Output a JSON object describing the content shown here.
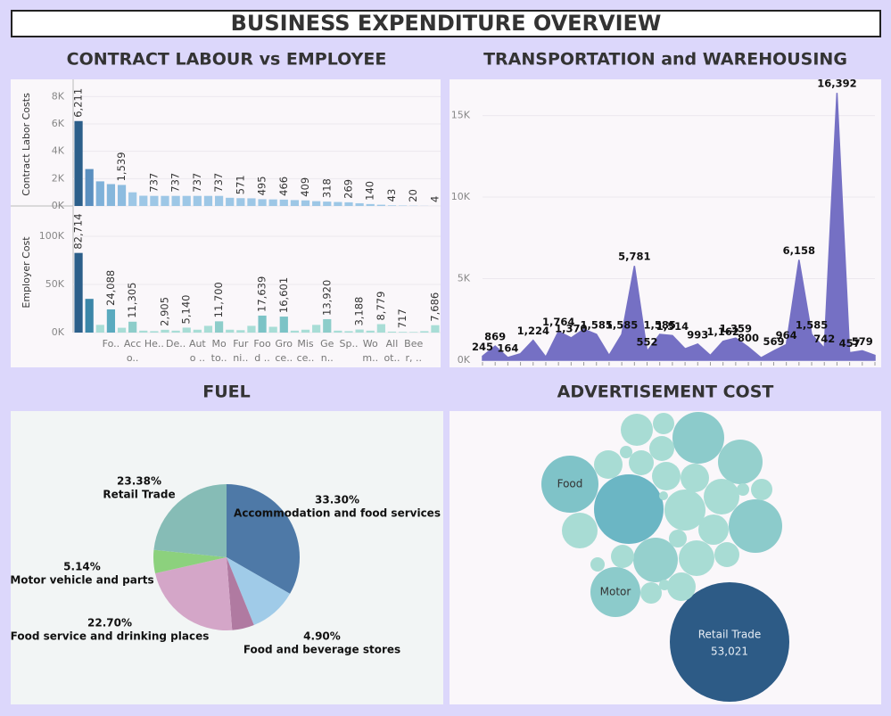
{
  "title": "BUSINESS EXPENDITURE OVERVIEW",
  "chart_data": [
    {
      "type": "bar",
      "title": "CONTRACT LABOUR vs EMPLOYEE",
      "y_label": "Contract Labor Costs",
      "values": [
        6211,
        2700,
        1800,
        1600,
        1539,
        1000,
        750,
        737,
        737,
        737,
        737,
        737,
        737,
        737,
        600,
        571,
        560,
        495,
        480,
        466,
        430,
        409,
        350,
        318,
        290,
        269,
        200,
        140,
        90,
        43,
        30,
        20,
        10,
        4
      ],
      "value_labels": [
        "6,211",
        null,
        null,
        null,
        "1,539",
        null,
        null,
        "737",
        null,
        "737",
        null,
        "737",
        null,
        "737",
        null,
        "571",
        null,
        "495",
        null,
        "466",
        null,
        "409",
        null,
        "318",
        null,
        "269",
        null,
        "140",
        null,
        "43",
        null,
        "20",
        null,
        "4"
      ],
      "colors": [
        "#2c5f8a",
        "#5a8fbf",
        "#7fb1d9",
        "#86b7dc",
        "#8dbce0",
        "#9dc7e6",
        "#9dc7e6",
        "#9dc7e6",
        "#9dc7e6",
        "#9dc7e6",
        "#9dc7e6",
        "#9dc7e6",
        "#9dc7e6",
        "#9dc7e6",
        "#9dc7e6",
        "#9dc7e6",
        "#9dc7e6",
        "#9dc7e6",
        "#9dc7e6",
        "#9dc7e6",
        "#9dc7e6",
        "#9dc7e6",
        "#9dc7e6",
        "#9dc7e6",
        "#9dc7e6",
        "#9dc7e6",
        "#9dc7e6",
        "#9dc7e6",
        "#9dc7e6",
        "#9dc7e6",
        "#9dc7e6",
        "#9dc7e6",
        "#9dc7e6",
        "#9dc7e6"
      ],
      "ylim": [
        0,
        9000
      ],
      "yticks": [
        {
          "value": 0,
          "label": "0K"
        },
        {
          "value": 2000,
          "label": "2K"
        },
        {
          "value": 4000,
          "label": "4K"
        },
        {
          "value": 6000,
          "label": "6K"
        },
        {
          "value": 8000,
          "label": "8K"
        }
      ],
      "grid": true
    },
    {
      "type": "bar",
      "y_label": "Employer Cost",
      "categories": [
        null,
        null,
        null,
        "Fo..",
        null,
        "Acc o..",
        null,
        "He..",
        null,
        "De..",
        null,
        "Aut o ..",
        null,
        "Mo to..",
        null,
        "Fur ni..",
        null,
        "Foo d ..",
        null,
        "Gro ce..",
        null,
        "Mis ce..",
        null,
        "Ge n..",
        null,
        "Sp..",
        null,
        "Wo m..",
        null,
        "All ot..",
        null,
        "Bee r, ..",
        null,
        null
      ],
      "values": [
        82714,
        35000,
        8000,
        24088,
        5000,
        11305,
        2000,
        1500,
        2905,
        2000,
        5140,
        3000,
        7000,
        11700,
        3000,
        2500,
        7000,
        17639,
        6000,
        16601,
        2000,
        3000,
        8000,
        13920,
        2000,
        1500,
        3188,
        2000,
        8779,
        1000,
        717,
        600,
        1500,
        7686
      ],
      "value_labels": [
        "82,714",
        null,
        null,
        "24,088",
        null,
        "11,305",
        null,
        null,
        "2,905",
        null,
        "5,140",
        null,
        null,
        "11,700",
        null,
        null,
        null,
        "17,639",
        null,
        "16,601",
        null,
        null,
        null,
        "13,920",
        null,
        null,
        "3,188",
        null,
        "8,779",
        null,
        "717",
        null,
        null,
        "7,686"
      ],
      "colors": [
        "#2c5f8a",
        "#3b86a8",
        "#a8ddd6",
        "#5aaabf",
        "#a8ddd6",
        "#8dcdca",
        "#a8ddd6",
        "#a8ddd6",
        "#a8ddd6",
        "#a8ddd6",
        "#a8ddd6",
        "#a8ddd6",
        "#a8ddd6",
        "#8dcdca",
        "#a8ddd6",
        "#a8ddd6",
        "#a8ddd6",
        "#7cc3c6",
        "#a8ddd6",
        "#7cc3c6",
        "#a8ddd6",
        "#a8ddd6",
        "#a8ddd6",
        "#8dcdca",
        "#a8ddd6",
        "#a8ddd6",
        "#a8ddd6",
        "#a8ddd6",
        "#a8ddd6",
        "#a8ddd6",
        "#a8ddd6",
        "#a8ddd6",
        "#a8ddd6",
        "#a8ddd6"
      ],
      "ylim": [
        0,
        125000
      ],
      "yticks": [
        {
          "value": 0,
          "label": "0K"
        },
        {
          "value": 50000,
          "label": "50K"
        },
        {
          "value": 100000,
          "label": "100K"
        }
      ],
      "grid": true
    },
    {
      "type": "area",
      "title": "TRANSPORTATION and WAREHOUSING",
      "color": "#7570c4",
      "values": [
        245,
        869,
        164,
        400,
        1224,
        200,
        1764,
        1370,
        1900,
        1585,
        300,
        1585,
        5781,
        552,
        1585,
        1514,
        700,
        993,
        300,
        1162,
        1359,
        800,
        150,
        569,
        964,
        6158,
        1585,
        742,
        16392,
        457,
        579,
        300
      ],
      "value_labels": [
        "245",
        "869",
        "164",
        null,
        "1,224",
        null,
        "1,764",
        "1,370",
        null,
        "1,585",
        null,
        "1,585",
        "5,781",
        "552",
        "1,585",
        "1,514",
        null,
        "993",
        null,
        "1,162",
        "1,359",
        "800",
        null,
        "569",
        "964",
        "6,158",
        "1,585",
        "742",
        "16,392",
        "457",
        "579",
        null
      ],
      "ylim": [
        0,
        17000
      ],
      "yticks": [
        {
          "value": 0,
          "label": "0K"
        },
        {
          "value": 5000,
          "label": "5K"
        },
        {
          "value": 10000,
          "label": "10K"
        },
        {
          "value": 15000,
          "label": "15K"
        }
      ],
      "grid": true
    },
    {
      "type": "pie",
      "title": "FUEL",
      "categories": [
        "Accommodation and food services",
        null,
        "Food and beverage stores",
        "Food service and drinking places",
        "Motor vehicle and parts",
        "Retail Trade"
      ],
      "values": [
        33.3,
        10.58,
        4.9,
        22.7,
        5.14,
        23.38
      ],
      "value_labels": [
        "33.30%",
        null,
        "4.90%",
        "22.70%",
        "5.14%",
        "23.38%"
      ],
      "colors": [
        "#4e79a7",
        "#a0cbe8",
        "#b07aa1",
        "#d4a6c8",
        "#8cd17d",
        "#86bcb6"
      ]
    },
    {
      "type": "bubble",
      "title": "ADVERTISEMENT COST",
      "categories": [
        "Retail Trade",
        null,
        "Food",
        "Motor",
        null,
        null,
        null,
        null,
        null,
        null,
        null,
        null,
        null,
        null,
        null,
        null,
        null,
        null,
        null,
        null,
        null,
        null,
        null,
        null,
        null,
        null,
        null,
        null,
        null,
        null,
        null
      ],
      "values": [
        53021,
        17963,
        12095,
        9260,
        9933,
        10631,
        7382,
        7382,
        6248,
        4725,
        4725,
        4725,
        3827,
        3414,
        3024,
        3024,
        3024,
        3024,
        2315,
        2315,
        2315,
        1997,
        1701,
        1701,
        1701,
        1181,
        756,
        579,
        579,
        425,
        295
      ],
      "value_labels": [
        "53,021",
        null,
        null,
        null,
        null,
        null,
        null,
        null,
        null,
        null,
        null,
        null,
        null,
        null,
        null,
        null,
        null,
        null,
        null,
        null,
        null,
        null,
        null,
        null,
        null,
        null,
        null,
        null,
        null,
        null,
        null
      ],
      "colors": [
        "#2d5b86",
        "#6bb6c4",
        "#7fc3c8",
        "#8ccbcb",
        "#8ccbcb",
        "#8ccbcb",
        "#95d0cd",
        "#95d0cd",
        "#a8dcd4",
        "#a8dcd4",
        "#a8dcd4",
        "#a8dcd4",
        "#a8dcd4",
        "#a8dcd4",
        "#a8dcd4",
        "#a8dcd4",
        "#a8dcd4",
        "#a8dcd4",
        "#a8dcd4",
        "#a8dcd4",
        "#a8dcd4",
        "#a8dcd4",
        "#a8dcd4",
        "#a8dcd4",
        "#a8dcd4",
        "#a8dcd4",
        "#a8dcd4",
        "#a8dcd4",
        "#a8dcd4",
        "#a8dcd4",
        "#a8dcd4"
      ]
    }
  ]
}
